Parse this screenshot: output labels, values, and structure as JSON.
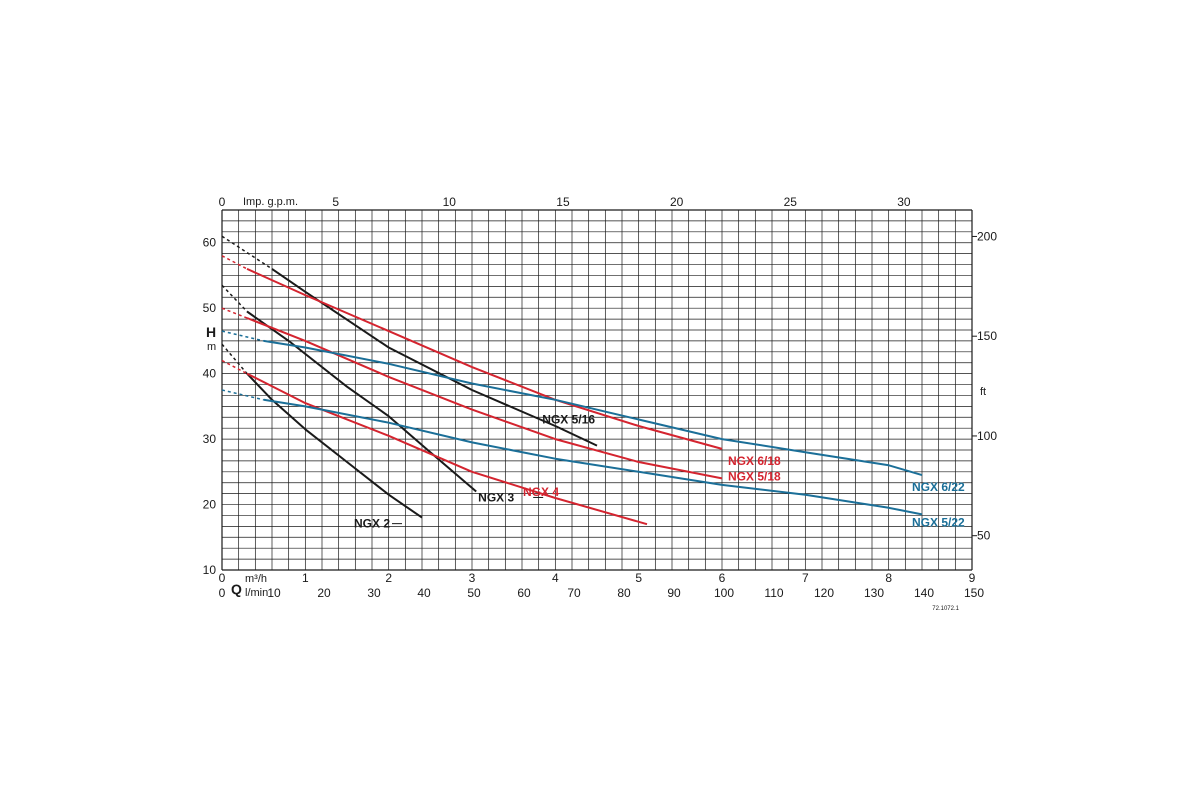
{
  "chart_data": {
    "type": "line",
    "axes": {
      "x_primary": {
        "unit": "m³/h",
        "range": [
          0,
          9
        ],
        "ticks": [
          "0",
          "1",
          "2",
          "3",
          "4",
          "5",
          "6",
          "7",
          "8",
          "9"
        ]
      },
      "x_secondary": {
        "symbol": "Q",
        "unit": "l/min",
        "range": [
          0,
          150
        ],
        "ticks": [
          "0",
          "10",
          "20",
          "30",
          "40",
          "50",
          "60",
          "70",
          "80",
          "90",
          "100",
          "110",
          "120",
          "130",
          "140",
          "150"
        ]
      },
      "x_top": {
        "unit": "Imp. g.p.m.",
        "ticks": [
          "0",
          "5",
          "10",
          "15",
          "20",
          "25",
          "30"
        ]
      },
      "y_left": {
        "symbol": "H",
        "unit": "m",
        "range": [
          10,
          65
        ],
        "ticks": [
          "10",
          "20",
          "30",
          "40",
          "50",
          "60"
        ]
      },
      "y_right": {
        "unit": "ft",
        "ticks": [
          "50",
          "100",
          "150",
          "200"
        ]
      }
    },
    "grid": true,
    "reference": "72.1072.1",
    "colors": {
      "black": "#1a1a1a",
      "red": "#d4242f",
      "blue": "#1b6f98"
    },
    "series": [
      {
        "name": "NGX 2",
        "color": "black",
        "x": [
          0.3,
          0.6,
          1.0,
          1.5,
          2.0,
          2.4
        ],
        "y": [
          40.0,
          36.0,
          31.5,
          26.5,
          21.5,
          18.0
        ],
        "extrapolated": {
          "x": [
            0,
            0.3
          ],
          "y": [
            44.5,
            40.0
          ]
        }
      },
      {
        "name": "NGX 3",
        "color": "black",
        "x": [
          0.3,
          0.8,
          1.5,
          2.0,
          2.5,
          3.05
        ],
        "y": [
          49.5,
          45.0,
          38.0,
          33.5,
          28.0,
          22.0
        ],
        "extrapolated": {
          "x": [
            0,
            0.3
          ],
          "y": [
            53.5,
            49.5
          ]
        }
      },
      {
        "name": "NGX 5/16",
        "color": "black",
        "x": [
          0.6,
          1.0,
          2.0,
          3.0,
          4.0,
          4.5
        ],
        "y": [
          56.0,
          52.5,
          44.0,
          37.5,
          32.0,
          29.0
        ],
        "extrapolated": {
          "x": [
            0,
            0.6
          ],
          "y": [
            61.0,
            56.0
          ]
        }
      },
      {
        "name": "NGX 4",
        "color": "red",
        "x": [
          0.3,
          1.0,
          2.0,
          3.0,
          4.0,
          5.1
        ],
        "y": [
          40.0,
          35.5,
          30.5,
          25.0,
          21.0,
          17.0
        ],
        "extrapolated": {
          "x": [
            0,
            0.3
          ],
          "y": [
            42.0,
            40.0
          ]
        }
      },
      {
        "name": "NGX 5/18",
        "color": "red",
        "x": [
          0.3,
          1.0,
          2.0,
          3.0,
          4.0,
          5.0,
          6.0
        ],
        "y": [
          48.5,
          45.0,
          39.5,
          34.5,
          30.0,
          26.5,
          24.0
        ],
        "extrapolated": {
          "x": [
            0,
            0.3
          ],
          "y": [
            50.0,
            48.5
          ]
        }
      },
      {
        "name": "NGX 6/18",
        "color": "red",
        "x": [
          0.3,
          1.0,
          2.0,
          3.0,
          4.0,
          5.0,
          6.0
        ],
        "y": [
          56.0,
          52.0,
          46.5,
          41.0,
          36.0,
          32.0,
          28.5
        ],
        "extrapolated": {
          "x": [
            0,
            0.3
          ],
          "y": [
            58.0,
            56.0
          ]
        }
      },
      {
        "name": "NGX 5/22",
        "color": "blue",
        "x": [
          0.5,
          1.0,
          2.0,
          3.0,
          4.0,
          5.0,
          6.0,
          7.0,
          8.0,
          8.4
        ],
        "y": [
          36.0,
          35.0,
          32.5,
          29.5,
          27.0,
          25.0,
          23.0,
          21.5,
          19.5,
          18.5
        ],
        "extrapolated": {
          "x": [
            0,
            0.5
          ],
          "y": [
            37.5,
            36.0
          ]
        }
      },
      {
        "name": "NGX 6/22",
        "color": "blue",
        "x": [
          0.5,
          1.0,
          2.0,
          3.0,
          4.0,
          5.0,
          6.0,
          7.0,
          8.0,
          8.4
        ],
        "y": [
          45.0,
          44.0,
          41.5,
          38.5,
          36.0,
          33.0,
          30.0,
          28.0,
          26.0,
          24.5
        ],
        "extrapolated": {
          "x": [
            0,
            0.5
          ],
          "y": [
            46.5,
            45.0
          ]
        }
      }
    ]
  }
}
